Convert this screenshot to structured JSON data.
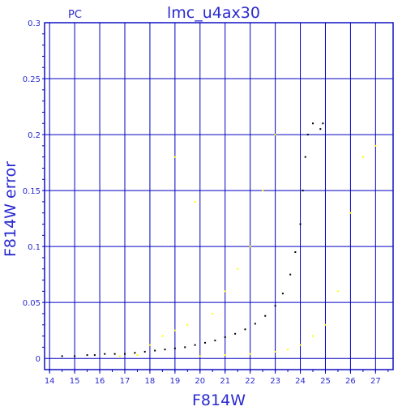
{
  "chart_data": {
    "type": "scatter",
    "title": "lmc_u4ax30",
    "subtitle": "PC",
    "xlabel": "F814W",
    "ylabel": "F814W error",
    "xlim": [
      13.8,
      27.7
    ],
    "ylim": [
      -0.01,
      0.3
    ],
    "x_ticks": [
      "14",
      "15",
      "16",
      "17",
      "18",
      "19",
      "20",
      "21",
      "22",
      "23",
      "24",
      "25",
      "26",
      "27"
    ],
    "y_ticks": [
      "0",
      "0.05",
      "0.1",
      "0.15",
      "0.2",
      "0.25",
      "0.3"
    ],
    "y_tick_values": [
      0,
      0.05,
      0.1,
      0.15,
      0.2,
      0.25,
      0.3
    ],
    "grid": true,
    "colors": {
      "frame": "#0000c0",
      "text": "#2a2ad0",
      "series_black": "#000000",
      "series_yellow": "#ffff00"
    },
    "series": [
      {
        "color": "#000000",
        "values": [
          [
            14.5,
            0.002
          ],
          [
            15.0,
            0.002
          ],
          [
            15.5,
            0.003
          ],
          [
            15.8,
            0.003
          ],
          [
            16.2,
            0.004
          ],
          [
            16.6,
            0.004
          ],
          [
            17.0,
            0.004
          ],
          [
            17.4,
            0.005
          ],
          [
            17.8,
            0.006
          ],
          [
            18.2,
            0.007
          ],
          [
            18.6,
            0.008
          ],
          [
            19.0,
            0.009
          ],
          [
            19.4,
            0.01
          ],
          [
            19.8,
            0.012
          ],
          [
            20.2,
            0.014
          ],
          [
            20.6,
            0.016
          ],
          [
            21.0,
            0.019
          ],
          [
            21.4,
            0.022
          ],
          [
            21.8,
            0.026
          ],
          [
            22.2,
            0.031
          ],
          [
            22.6,
            0.038
          ],
          [
            23.0,
            0.047
          ],
          [
            23.3,
            0.058
          ],
          [
            23.6,
            0.075
          ],
          [
            23.8,
            0.095
          ],
          [
            24.0,
            0.12
          ],
          [
            24.1,
            0.15
          ],
          [
            24.2,
            0.18
          ],
          [
            24.3,
            0.2
          ],
          [
            24.5,
            0.21
          ],
          [
            24.8,
            0.205
          ],
          [
            24.9,
            0.21
          ]
        ]
      },
      {
        "color": "#ffff00",
        "values": [
          [
            16.8,
            0.002
          ],
          [
            17.5,
            0.003
          ],
          [
            18.0,
            0.012
          ],
          [
            18.5,
            0.02
          ],
          [
            19.0,
            0.025
          ],
          [
            19.0,
            0.18
          ],
          [
            19.5,
            0.03
          ],
          [
            19.8,
            0.14
          ],
          [
            20.0,
            0.002
          ],
          [
            20.5,
            0.04
          ],
          [
            21.0,
            0.003
          ],
          [
            21.0,
            0.06
          ],
          [
            21.5,
            0.08
          ],
          [
            22.0,
            0.004
          ],
          [
            22.0,
            0.1
          ],
          [
            22.5,
            0.15
          ],
          [
            23.0,
            0.006
          ],
          [
            23.0,
            0.2
          ],
          [
            23.5,
            0.008
          ],
          [
            24.0,
            0.012
          ],
          [
            24.5,
            0.02
          ],
          [
            25.0,
            0.03
          ],
          [
            25.5,
            0.06
          ],
          [
            26.0,
            0.13
          ],
          [
            26.5,
            0.18
          ],
          [
            27.0,
            0.19
          ]
        ]
      }
    ]
  }
}
